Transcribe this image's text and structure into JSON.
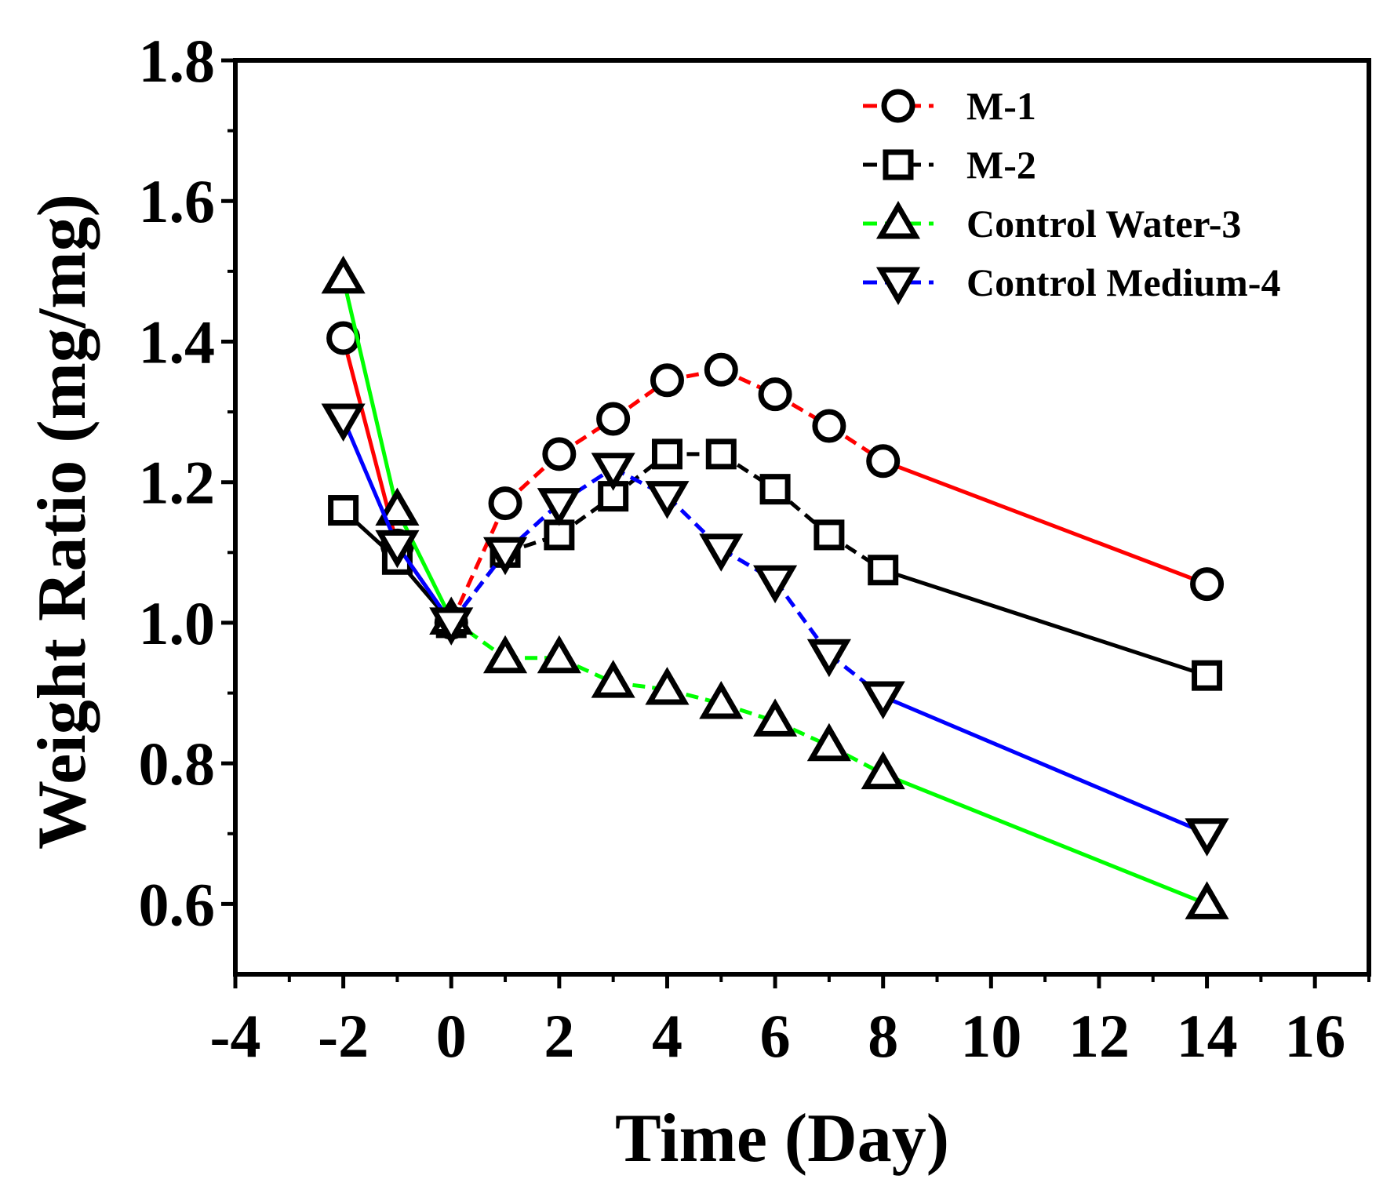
{
  "chart_data": {
    "type": "line",
    "title": "",
    "xlabel": "Time (Day)",
    "ylabel": "Weight Ratio (mg/mg)",
    "xlim": [
      -4,
      17
    ],
    "ylim": [
      0.5,
      1.8
    ],
    "xticks": [
      -4,
      -2,
      0,
      2,
      4,
      6,
      8,
      10,
      12,
      14,
      16
    ],
    "yticks": [
      0.6,
      0.8,
      1.0,
      1.2,
      1.4,
      1.6,
      1.8
    ],
    "xtick_labels": [
      "-4",
      "-2",
      "0",
      "2",
      "4",
      "6",
      "8",
      "10",
      "12",
      "14",
      "16"
    ],
    "ytick_labels": [
      "0.6",
      "0.8",
      "1.0",
      "1.2",
      "1.4",
      "1.6",
      "1.8"
    ],
    "grid": false,
    "legend_position": "top-right",
    "series": [
      {
        "name": "M-1",
        "color": "#ff0000",
        "marker": "circle",
        "x": [
          -2,
          -1,
          0,
          1,
          2,
          3,
          4,
          5,
          6,
          7,
          8,
          14
        ],
        "y": [
          1.405,
          1.11,
          1.0,
          1.17,
          1.24,
          1.29,
          1.345,
          1.36,
          1.325,
          1.28,
          1.23,
          1.055
        ]
      },
      {
        "name": "M-2",
        "color": "#000000",
        "marker": "square",
        "x": [
          -2,
          -1,
          0,
          1,
          2,
          3,
          4,
          5,
          6,
          7,
          8,
          14
        ],
        "y": [
          1.16,
          1.09,
          1.0,
          1.1,
          1.125,
          1.18,
          1.24,
          1.24,
          1.19,
          1.125,
          1.075,
          0.925
        ]
      },
      {
        "name": "Control Water-3",
        "color": "#00ff00",
        "marker": "triangle-up",
        "x": [
          -2,
          -1,
          0,
          1,
          2,
          3,
          4,
          5,
          6,
          7,
          8,
          14
        ],
        "y": [
          1.49,
          1.16,
          1.005,
          0.95,
          0.95,
          0.915,
          0.905,
          0.885,
          0.86,
          0.825,
          0.785,
          0.6
        ]
      },
      {
        "name": "Control Medium-4",
        "color": "#0000ff",
        "marker": "triangle-down",
        "x": [
          -2,
          -1,
          0,
          1,
          2,
          3,
          4,
          5,
          6,
          7,
          8,
          14
        ],
        "y": [
          1.29,
          1.11,
          1.0,
          1.1,
          1.17,
          1.22,
          1.18,
          1.105,
          1.06,
          0.955,
          0.895,
          0.7
        ]
      }
    ]
  }
}
